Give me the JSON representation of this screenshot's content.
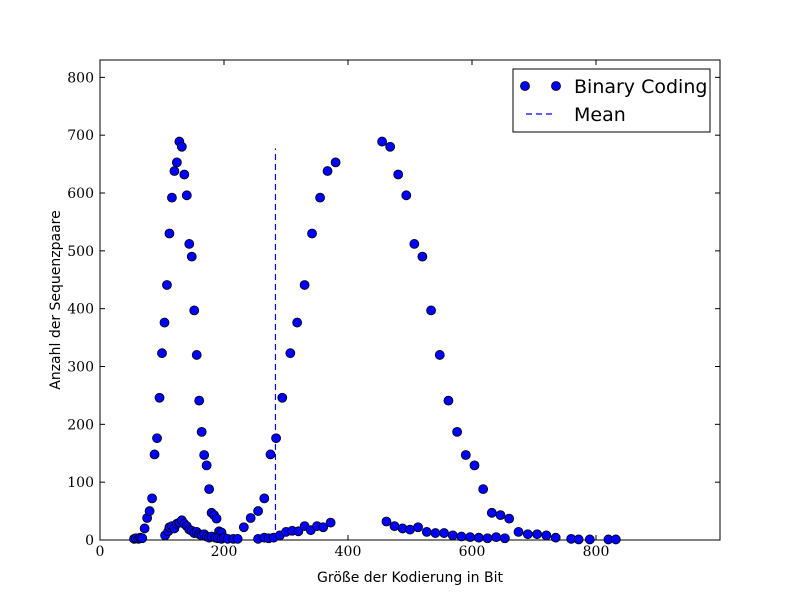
{
  "chart_data": {
    "type": "scatter",
    "xlabel": "Größe der Kodierung in Bit",
    "ylabel": "Anzahl der Sequenzpaare",
    "xlim": [
      0,
      1000
    ],
    "ylim": [
      0,
      830
    ],
    "x_ticks": [
      0,
      200,
      400,
      600,
      800
    ],
    "y_ticks": [
      0,
      100,
      200,
      300,
      400,
      500,
      600,
      700,
      800
    ],
    "grid": false,
    "legend_position": "top-right",
    "colors": {
      "points": "#0000ff",
      "point_edge": "#000000",
      "mean_line": "#0000ff"
    },
    "legend": [
      {
        "label": "Binary Coding",
        "marker": "circle"
      },
      {
        "label": "Mean",
        "marker": "dashed-line"
      }
    ],
    "mean": {
      "x": 283,
      "y_range": [
        0,
        677
      ]
    },
    "series": [
      {
        "label_ref": "Binary Coding",
        "points": [
          [
            55,
            2
          ],
          [
            58,
            3
          ],
          [
            62,
            2
          ],
          [
            65,
            4
          ],
          [
            68,
            3
          ],
          [
            72,
            20
          ],
          [
            76,
            38
          ],
          [
            80,
            50
          ],
          [
            84,
            72
          ],
          [
            88,
            148
          ],
          [
            92,
            176
          ],
          [
            96,
            246
          ],
          [
            100,
            323
          ],
          [
            104,
            376
          ],
          [
            108,
            441
          ],
          [
            112,
            530
          ],
          [
            116,
            592
          ],
          [
            120,
            638
          ],
          [
            124,
            653
          ],
          [
            128,
            689
          ],
          [
            132,
            680
          ],
          [
            136,
            632
          ],
          [
            140,
            596
          ],
          [
            144,
            512
          ],
          [
            148,
            490
          ],
          [
            152,
            397
          ],
          [
            156,
            320
          ],
          [
            160,
            241
          ],
          [
            164,
            187
          ],
          [
            168,
            147
          ],
          [
            172,
            129
          ],
          [
            176,
            88
          ],
          [
            180,
            47
          ],
          [
            184,
            43
          ],
          [
            188,
            37
          ],
          [
            192,
            15
          ],
          [
            196,
            13
          ],
          [
            105,
            8
          ],
          [
            110,
            15
          ],
          [
            112,
            22
          ],
          [
            116,
            24
          ],
          [
            120,
            20
          ],
          [
            124,
            28
          ],
          [
            128,
            30
          ],
          [
            132,
            34
          ],
          [
            136,
            28
          ],
          [
            140,
            24
          ],
          [
            144,
            18
          ],
          [
            148,
            16
          ],
          [
            152,
            12
          ],
          [
            156,
            14
          ],
          [
            160,
            10
          ],
          [
            164,
            8
          ],
          [
            168,
            10
          ],
          [
            172,
            6
          ],
          [
            176,
            4
          ],
          [
            180,
            6
          ],
          [
            186,
            4
          ],
          [
            190,
            3
          ],
          [
            196,
            2
          ],
          [
            200,
            4
          ],
          [
            206,
            2
          ],
          [
            215,
            2
          ],
          [
            222,
            2
          ],
          [
            232,
            22
          ],
          [
            243,
            38
          ],
          [
            255,
            50
          ],
          [
            265,
            72
          ],
          [
            275,
            148
          ],
          [
            284,
            176
          ],
          [
            294,
            246
          ],
          [
            307,
            323
          ],
          [
            318,
            376
          ],
          [
            330,
            441
          ],
          [
            342,
            530
          ],
          [
            355,
            592
          ],
          [
            367,
            638
          ],
          [
            380,
            653
          ],
          [
            255,
            2
          ],
          [
            265,
            4
          ],
          [
            272,
            3
          ],
          [
            280,
            4
          ],
          [
            290,
            8
          ],
          [
            300,
            14
          ],
          [
            310,
            16
          ],
          [
            320,
            15
          ],
          [
            330,
            24
          ],
          [
            340,
            17
          ],
          [
            350,
            24
          ],
          [
            360,
            22
          ],
          [
            372,
            30
          ],
          [
            455,
            689
          ],
          [
            468,
            680
          ],
          [
            481,
            632
          ],
          [
            494,
            596
          ],
          [
            507,
            512
          ],
          [
            520,
            490
          ],
          [
            534,
            397
          ],
          [
            548,
            320
          ],
          [
            562,
            241
          ],
          [
            576,
            187
          ],
          [
            590,
            147
          ],
          [
            604,
            129
          ],
          [
            618,
            88
          ],
          [
            632,
            47
          ],
          [
            646,
            43
          ],
          [
            660,
            37
          ],
          [
            462,
            32
          ],
          [
            475,
            24
          ],
          [
            488,
            20
          ],
          [
            500,
            18
          ],
          [
            513,
            22
          ],
          [
            527,
            14
          ],
          [
            541,
            12
          ],
          [
            555,
            12
          ],
          [
            569,
            8
          ],
          [
            583,
            6
          ],
          [
            597,
            5
          ],
          [
            611,
            4
          ],
          [
            625,
            3
          ],
          [
            639,
            5
          ],
          [
            653,
            3
          ],
          [
            675,
            14
          ],
          [
            690,
            10
          ],
          [
            705,
            10
          ],
          [
            720,
            8
          ],
          [
            735,
            4
          ],
          [
            760,
            2
          ],
          [
            772,
            1
          ],
          [
            790,
            1
          ],
          [
            820,
            1
          ],
          [
            832,
            1
          ]
        ]
      }
    ]
  }
}
